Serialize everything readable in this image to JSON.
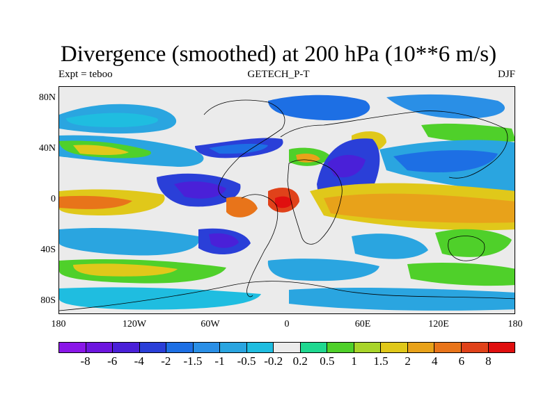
{
  "title": "Divergence (smoothed) at 200 hPa (10**6 m/s)",
  "left_label": "Expt = teboo",
  "center_label": "GETECH_P-T",
  "right_label": "DJF",
  "y_ticks": [
    "80N",
    "40N",
    "0",
    "40S",
    "80S"
  ],
  "x_ticks": [
    "180",
    "120W",
    "60W",
    "0",
    "60E",
    "120E",
    "180"
  ],
  "colorbar": {
    "labels": [
      "-8",
      "-6",
      "-4",
      "-2",
      "-1.5",
      "-1",
      "-0.5",
      "-0.2",
      "0.2",
      "0.5",
      "1",
      "1.5",
      "2",
      "4",
      "6",
      "8"
    ],
    "colors": [
      "#8a17e8",
      "#6d16df",
      "#4a20d8",
      "#2a3fd8",
      "#1d6fe4",
      "#2a8fe6",
      "#2aa5e0",
      "#1fbde0",
      "#ebebeb",
      "#1fd890",
      "#4fd02a",
      "#a8d42a",
      "#e0c81a",
      "#e8a21a",
      "#e8741a",
      "#e0421a",
      "#e00f0f"
    ]
  }
}
